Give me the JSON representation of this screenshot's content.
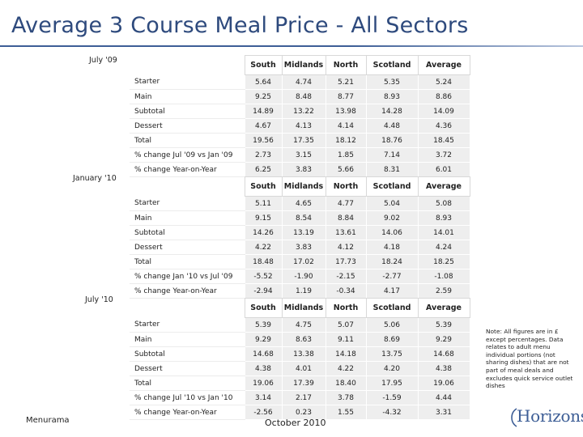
{
  "title": "Average 3 Course Meal Price - All Sectors",
  "columns": [
    "South",
    "Midlands",
    "North",
    "Scotland",
    "Average"
  ],
  "blocks": [
    {
      "period": "July '09",
      "rows": [
        {
          "label": "Starter",
          "values": [
            "5.64",
            "4.74",
            "5.21",
            "5.35",
            "5.24"
          ]
        },
        {
          "label": "Main",
          "values": [
            "9.25",
            "8.48",
            "8.77",
            "8.93",
            "8.86"
          ]
        },
        {
          "label": "Subtotal",
          "values": [
            "14.89",
            "13.22",
            "13.98",
            "14.28",
            "14.09"
          ]
        },
        {
          "label": "Dessert",
          "values": [
            "4.67",
            "4.13",
            "4.14",
            "4.48",
            "4.36"
          ]
        },
        {
          "label": "Total",
          "values": [
            "19.56",
            "17.35",
            "18.12",
            "18.76",
            "18.45"
          ]
        },
        {
          "label": "% change Jul '09 vs Jan '09",
          "values": [
            "2.73",
            "3.15",
            "1.85",
            "7.14",
            "3.72"
          ]
        },
        {
          "label": "% change Year-on-Year",
          "values": [
            "6.25",
            "3.83",
            "5.66",
            "8.31",
            "6.01"
          ]
        }
      ]
    },
    {
      "period": "January '10",
      "rows": [
        {
          "label": "Starter",
          "values": [
            "5.11",
            "4.65",
            "4.77",
            "5.04",
            "5.08"
          ]
        },
        {
          "label": "Main",
          "values": [
            "9.15",
            "8.54",
            "8.84",
            "9.02",
            "8.93"
          ]
        },
        {
          "label": "Subtotal",
          "values": [
            "14.26",
            "13.19",
            "13.61",
            "14.06",
            "14.01"
          ]
        },
        {
          "label": "Dessert",
          "values": [
            "4.22",
            "3.83",
            "4.12",
            "4.18",
            "4.24"
          ]
        },
        {
          "label": "Total",
          "values": [
            "18.48",
            "17.02",
            "17.73",
            "18.24",
            "18.25"
          ]
        },
        {
          "label": "% change Jan '10 vs Jul '09",
          "values": [
            "-5.52",
            "-1.90",
            "-2.15",
            "-2.77",
            "-1.08"
          ]
        },
        {
          "label": "% change Year-on-Year",
          "values": [
            "-2.94",
            "1.19",
            "-0.34",
            "4.17",
            "2.59"
          ]
        }
      ]
    },
    {
      "period": "July '10",
      "rows": [
        {
          "label": "Starter",
          "values": [
            "5.39",
            "4.75",
            "5.07",
            "5.06",
            "5.39"
          ]
        },
        {
          "label": "Main",
          "values": [
            "9.29",
            "8.63",
            "9.11",
            "8.69",
            "9.29"
          ]
        },
        {
          "label": "Subtotal",
          "values": [
            "14.68",
            "13.38",
            "14.18",
            "13.75",
            "14.68"
          ]
        },
        {
          "label": "Dessert",
          "values": [
            "4.38",
            "4.01",
            "4.22",
            "4.20",
            "4.38"
          ]
        },
        {
          "label": "Total",
          "values": [
            "19.06",
            "17.39",
            "18.40",
            "17.95",
            "19.06"
          ]
        },
        {
          "label": "% change Jul '10 vs Jan '10",
          "values": [
            "3.14",
            "2.17",
            "3.78",
            "-1.59",
            "4.44"
          ]
        },
        {
          "label": "% change Year-on-Year",
          "values": [
            "-2.56",
            "0.23",
            "1.55",
            "-4.32",
            "3.31"
          ]
        }
      ]
    }
  ],
  "note": "Note: All figures are in £ except percentages. Data relates to adult menu individual portions (not sharing dishes) that are not part of meal deals and excludes quick service outlet dishes",
  "footer_left": "Menurama",
  "footer_center": "October 2010",
  "logo_text": "Horizons",
  "colors": {
    "title": "#2e4a7d",
    "rule": "#3d5e96",
    "cell_bg": "#eeeeee",
    "logo": "#3d5e96"
  }
}
